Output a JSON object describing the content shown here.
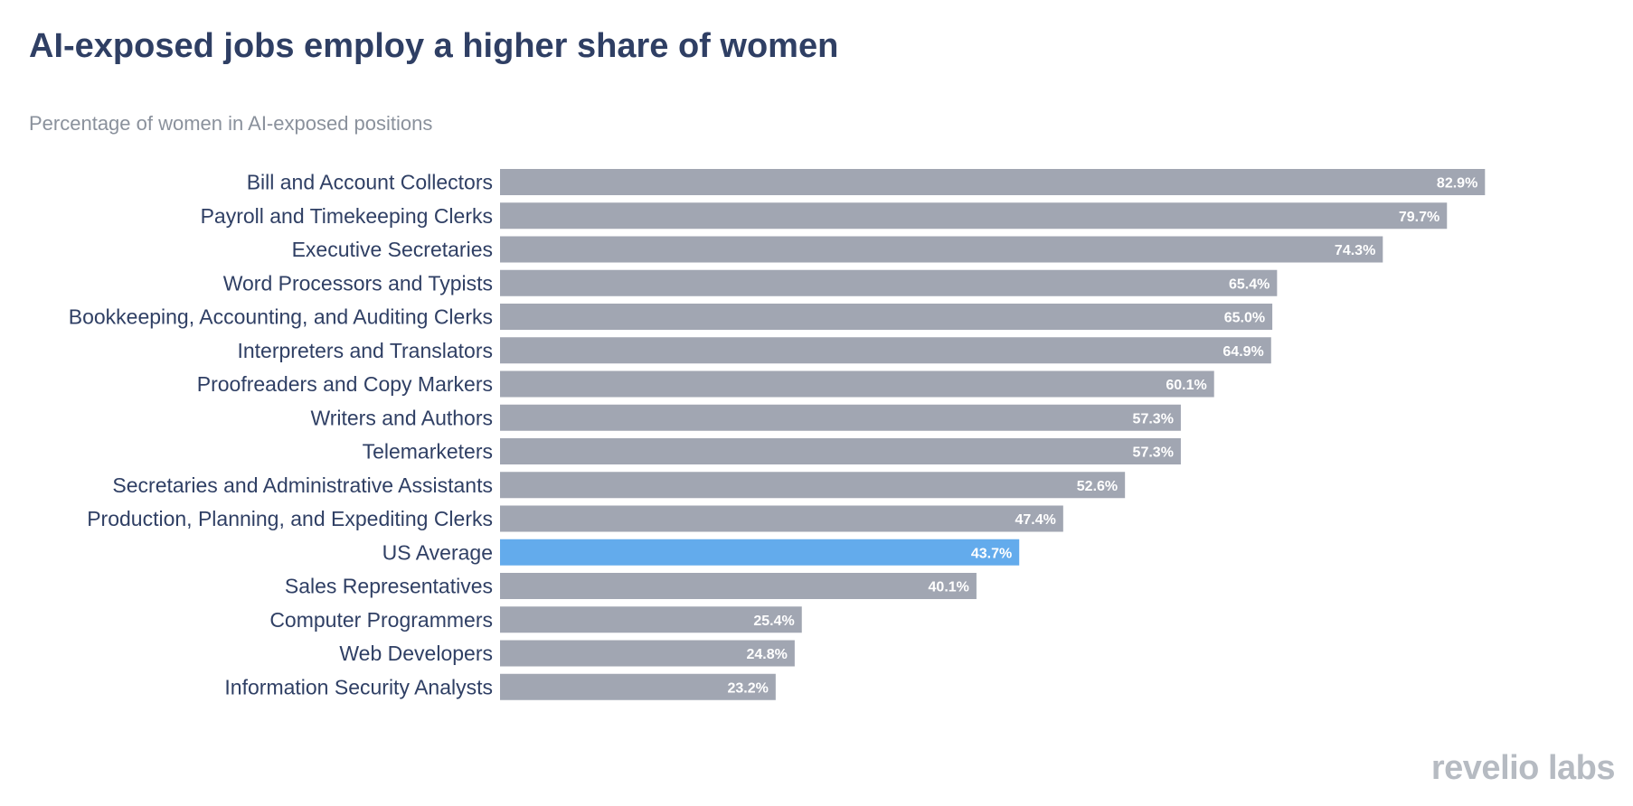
{
  "header": {
    "title": "AI-exposed jobs employ a higher share of women",
    "subtitle": "Percentage of women in AI-exposed positions"
  },
  "logo": {
    "text": "revelio labs"
  },
  "colors": {
    "bar": "#a1a6b2",
    "highlight": "#63abec",
    "label": "#2f3f64",
    "value_label": "#ffffff"
  },
  "chart_data": {
    "type": "bar",
    "orientation": "horizontal",
    "title": "AI-exposed jobs employ a higher share of women",
    "subtitle": "Percentage of women in AI-exposed positions",
    "xlabel": "",
    "ylabel": "",
    "xlim": [
      0,
      100
    ],
    "grid": false,
    "legend": "none",
    "highlight_category": "US Average",
    "categories": [
      "Bill and Account Collectors",
      "Payroll and Timekeeping Clerks",
      "Executive Secretaries",
      "Word Processors and Typists",
      "Bookkeeping, Accounting, and Auditing Clerks",
      "Interpreters and Translators",
      "Proofreaders and Copy Markers",
      "Writers and Authors",
      "Telemarketers",
      "Secretaries and Administrative Assistants",
      "Production, Planning, and Expediting Clerks",
      "US Average",
      "Sales Representatives",
      "Computer Programmers",
      "Web Developers",
      "Information Security Analysts"
    ],
    "values": [
      82.9,
      79.7,
      74.3,
      65.4,
      65.0,
      64.9,
      60.1,
      57.3,
      57.3,
      52.6,
      47.4,
      43.7,
      40.1,
      25.4,
      24.8,
      23.2
    ],
    "value_labels": [
      "82.9%",
      "79.7%",
      "74.3%",
      "65.4%",
      "65.0%",
      "64.9%",
      "60.1%",
      "57.3%",
      "57.3%",
      "52.6%",
      "47.4%",
      "43.7%",
      "40.1%",
      "25.4%",
      "24.8%",
      "23.2%"
    ]
  }
}
